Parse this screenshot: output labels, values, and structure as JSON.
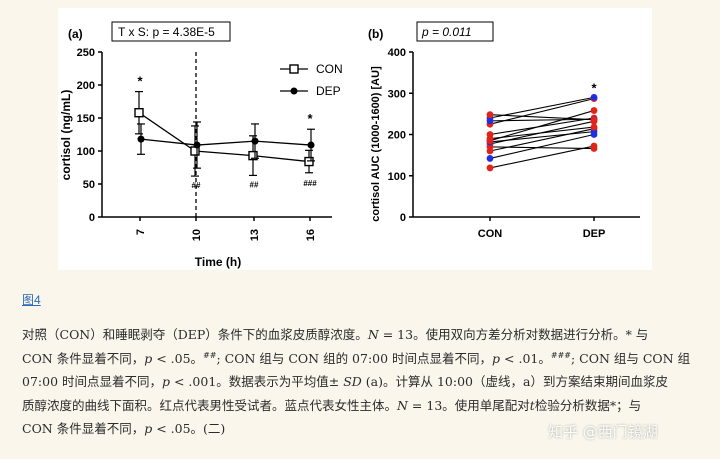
{
  "figure_link": "图4",
  "caption_lines": [
    [
      [
        "t",
        "对照（CON）和睡眠剥夺（DEP）条件下的血浆皮质醇浓度。"
      ],
      [
        "i",
        "N"
      ],
      [
        "t",
        " = 13。使用双向方差分析对数据进行分析。* 与"
      ]
    ],
    [
      [
        "t",
        "CON 条件显着不同，"
      ],
      [
        "i",
        "p"
      ],
      [
        "t",
        " < .05。"
      ],
      [
        "s",
        "##"
      ],
      [
        "t",
        "; CON 组与 CON 组的 07:00 时间点显着不同，"
      ],
      [
        "i",
        "p"
      ],
      [
        "t",
        " < .01。"
      ],
      [
        "s",
        "###"
      ],
      [
        "t",
        "; CON 组与 CON 组"
      ]
    ],
    [
      [
        "t",
        "07:00 时间点显着不同，"
      ],
      [
        "i",
        "p"
      ],
      [
        "t",
        " < .001。数据表示为平均值± "
      ],
      [
        "i",
        "SD"
      ],
      [
        "t",
        " (a)。计算从 10:00（虚线，a）到方案结束期间血浆皮"
      ]
    ],
    [
      [
        "t",
        "质醇浓度的曲线下面积。红点代表男性受试者。蓝点代表女性主体。"
      ],
      [
        "i",
        "N"
      ],
      [
        "t",
        " = 13。使用单尾配对"
      ],
      [
        "i",
        "t"
      ],
      [
        "t",
        "检验分析数据*；与"
      ]
    ],
    [
      [
        "t",
        "CON 条件显着不同，"
      ],
      [
        "i",
        "p"
      ],
      [
        "t",
        " < .05。(二)"
      ]
    ]
  ],
  "watermark": "知乎 @西门镜湖",
  "chart_data": [
    {
      "panel": "(a)",
      "type": "line",
      "annotation": "T x S: p = 4.38E-5",
      "xlabel": "Time (h)",
      "ylabel": "cortisol (ng/mL)",
      "categories": [
        "7",
        "10",
        "13",
        "16"
      ],
      "ylim": [
        0,
        250
      ],
      "yticks": [
        0,
        50,
        100,
        150,
        200,
        250
      ],
      "vline_at": "10",
      "legend_position": "top-right",
      "series": [
        {
          "name": "CON",
          "marker": "open-square",
          "values": [
            158,
            100,
            93,
            84
          ],
          "sd": [
            32,
            38,
            30,
            17
          ]
        },
        {
          "name": "DEP",
          "marker": "filled-circle",
          "values": [
            118,
            109,
            115,
            109
          ],
          "sd": [
            23,
            35,
            26,
            24
          ]
        }
      ],
      "significance": [
        {
          "x": "7",
          "label": "*"
        },
        {
          "x": "10",
          "label": "##"
        },
        {
          "x": "13",
          "label": "##"
        },
        {
          "x": "16",
          "label": "*"
        },
        {
          "x": "16",
          "label": "###"
        }
      ]
    },
    {
      "panel": "(b)",
      "type": "scatter",
      "annotation": "p = 0.011",
      "ylabel": "cortisol AUC (1000-1600) [AU]",
      "categories": [
        "CON",
        "DEP"
      ],
      "ylim": [
        0,
        400
      ],
      "yticks": [
        0,
        100,
        200,
        300,
        400
      ],
      "point_colors": {
        "male": "#e2231a",
        "female": "#1f2fe0"
      },
      "pairs": [
        {
          "con": 119,
          "dep": 172,
          "sex": "male"
        },
        {
          "con": 142,
          "dep": 200,
          "sex": "female"
        },
        {
          "con": 160,
          "dep": 214,
          "sex": "male"
        },
        {
          "con": 170,
          "dep": 166,
          "sex": "male"
        },
        {
          "con": 177,
          "dep": 232,
          "sex": "male"
        },
        {
          "con": 182,
          "dep": 207,
          "sex": "female"
        },
        {
          "con": 185,
          "dep": 258,
          "sex": "male"
        },
        {
          "con": 190,
          "dep": 218,
          "sex": "male"
        },
        {
          "con": 200,
          "dep": 240,
          "sex": "male"
        },
        {
          "con": 225,
          "dep": 287,
          "sex": "male"
        },
        {
          "con": 233,
          "dep": 237,
          "sex": "female"
        },
        {
          "con": 240,
          "dep": 290,
          "sex": "female"
        },
        {
          "con": 248,
          "dep": 236,
          "sex": "male"
        }
      ],
      "significance": [
        {
          "x": "DEP",
          "label": "*"
        }
      ]
    }
  ]
}
